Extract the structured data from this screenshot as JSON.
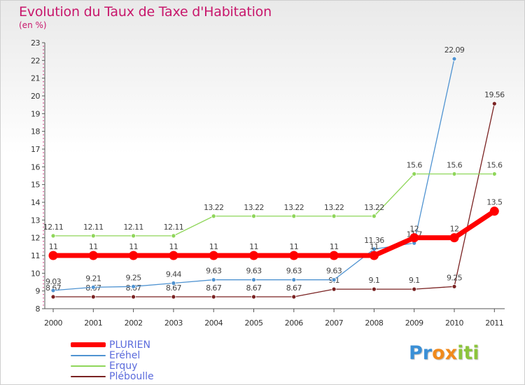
{
  "header": {
    "title": "Evolution du Taux de Taxe d'Habitation",
    "subtitle": "(en %)"
  },
  "logo": {
    "text": "Proxiti",
    "letters": [
      "P",
      "r",
      "o",
      "x",
      "i",
      "t",
      "i"
    ],
    "colors": [
      "#3a8fd6",
      "#3a8fd6",
      "#f08a1c",
      "#f08a1c",
      "#8cc43c",
      "#8cc43c",
      "#8cc43c"
    ]
  },
  "chart_data": {
    "type": "line",
    "title": "Evolution du Taux de Taxe d'Habitation",
    "ylabel": "(en %)",
    "xlabel": "",
    "x": [
      "2000",
      "2001",
      "2002",
      "2003",
      "2004",
      "2005",
      "2006",
      "2007",
      "2008",
      "2009",
      "2010",
      "2011"
    ],
    "ylim": [
      8,
      23
    ],
    "yticks": [
      8,
      9,
      10,
      11,
      12,
      13,
      14,
      15,
      16,
      17,
      18,
      19,
      20,
      21,
      22,
      23
    ],
    "grid": false,
    "legend_position": "bottom-left",
    "series": [
      {
        "name": "PLURIEN",
        "color": "#ff0000",
        "values": [
          11,
          11,
          11,
          11,
          11,
          11,
          11,
          11,
          11,
          12,
          12,
          13.5
        ],
        "labels": [
          "11",
          "11",
          "11",
          "11",
          "11",
          "11",
          "11",
          "11",
          "11",
          "12",
          "12",
          "13.5"
        ]
      },
      {
        "name": "Eréhel",
        "color": "#4f93d1",
        "values": [
          9.03,
          9.21,
          9.25,
          9.44,
          9.63,
          9.63,
          9.63,
          9.63,
          11.36,
          11.7,
          22.09,
          null
        ],
        "labels": [
          "9.03",
          "9.21",
          "9.25",
          "9.44",
          "9.63",
          "9.63",
          "9.63",
          "9.63",
          "11.36",
          "11.7",
          "22.09",
          ""
        ]
      },
      {
        "name": "Erquy",
        "color": "#8fd65a",
        "values": [
          12.11,
          12.11,
          12.11,
          12.11,
          13.22,
          13.22,
          13.22,
          13.22,
          13.22,
          15.6,
          15.6,
          15.6
        ],
        "labels": [
          "12.11",
          "12.11",
          "12.11",
          "12.11",
          "13.22",
          "13.22",
          "13.22",
          "13.22",
          "13.22",
          "15.6",
          "15.6",
          "15.6"
        ]
      },
      {
        "name": "Pléboulle",
        "color": "#7a2222",
        "values": [
          8.67,
          8.67,
          8.67,
          8.67,
          8.67,
          8.67,
          8.67,
          9.1,
          9.1,
          9.1,
          9.25,
          19.56
        ],
        "labels": [
          "8.67",
          "8.67",
          "8.67",
          "8.67",
          "8.67",
          "8.67",
          "8.67",
          "9.1",
          "9.1",
          "9.1",
          "9.25",
          "19.56"
        ]
      }
    ]
  }
}
